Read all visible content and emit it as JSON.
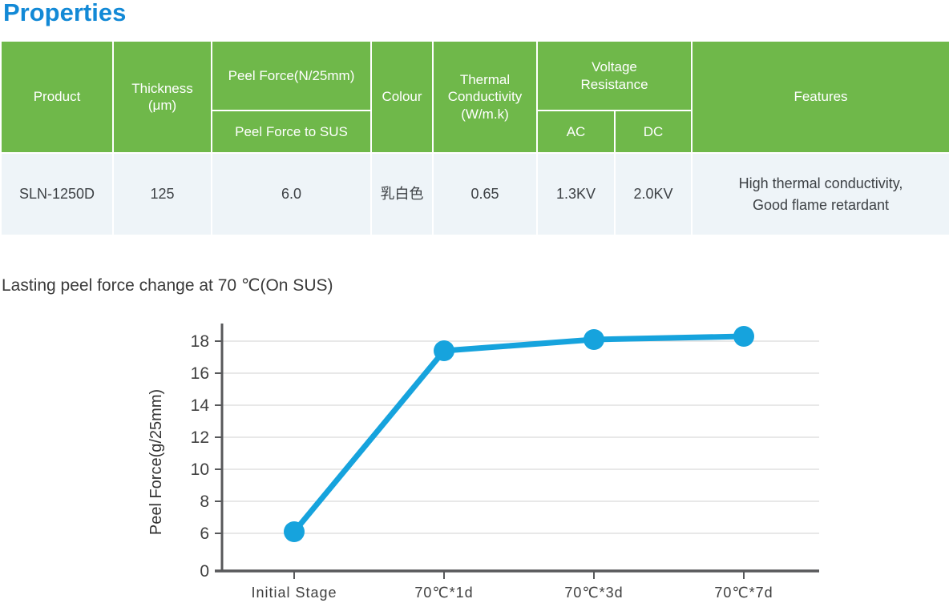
{
  "page": {
    "title": "Properties"
  },
  "colors": {
    "title_blue": "#1289d6",
    "header_green": "#6fb84a",
    "row_bg": "#eef4f8",
    "text_dark": "#3d4145",
    "axis": "#58595b",
    "grid": "#d9d9d9",
    "line_blue": "#16a3dd"
  },
  "table": {
    "headers": {
      "product": "Product",
      "thickness": "Thickness\n(μm)",
      "peel_force": "Peel Force(N/25mm)",
      "peel_force_sub": "Peel Force to SUS",
      "colour": "Colour",
      "thermal": "Thermal\nConductivity\n(W/m.k)",
      "voltage": "Voltage\nResistance",
      "ac": "AC",
      "dc": "DC",
      "features": "Features"
    },
    "rows": [
      {
        "product": "SLN-1250D",
        "thickness": "125",
        "peel_force_sus": "6.0",
        "colour": "乳白色",
        "thermal": "0.65",
        "ac": "1.3KV",
        "dc": "2.0KV",
        "features": "High thermal conductivity,\nGood flame retardant"
      }
    ]
  },
  "chart_data": {
    "type": "line",
    "title": "Lasting peel force change at 70 ℃(On SUS)",
    "categories": [
      "Initial Stage",
      "70℃*1d",
      "70℃*3d",
      "70℃*7d"
    ],
    "series": [
      {
        "name": "Peel Force",
        "values": [
          6.1,
          17.4,
          18.1,
          18.3
        ]
      }
    ],
    "xlabel": "",
    "ylabel": "Peel Force(g/25mm)",
    "y_ticks": [
      0,
      6,
      8,
      10,
      12,
      14,
      16,
      18
    ],
    "ylim": [
      0,
      19
    ],
    "grid": "horizontal",
    "legend": "none",
    "marker": "circle",
    "line_color": "#16a3dd",
    "axis_style": "broken axis: 0 at baseline, then 6 to 18 step 2"
  }
}
